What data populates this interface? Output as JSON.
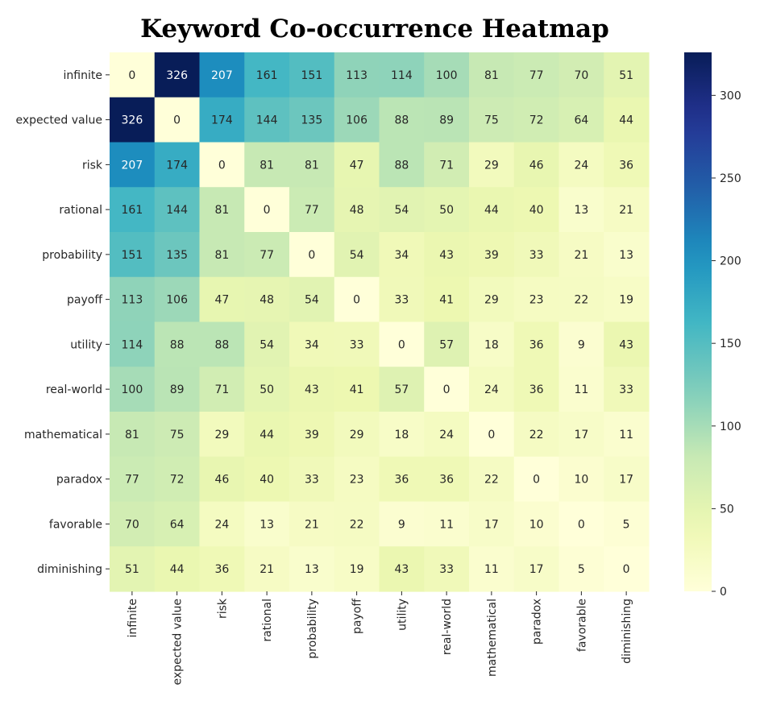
{
  "chart_data": {
    "type": "heatmap",
    "title": "Keyword Co-occurrence Heatmap",
    "xlabel": "",
    "ylabel": "",
    "categories": [
      "infinite",
      "expected value",
      "risk",
      "rational",
      "probability",
      "payoff",
      "utility",
      "real-world",
      "mathematical",
      "paradox",
      "favorable",
      "diminishing"
    ],
    "matrix": [
      [
        0,
        326,
        207,
        161,
        151,
        113,
        114,
        100,
        81,
        77,
        70,
        51
      ],
      [
        326,
        0,
        174,
        144,
        135,
        106,
        88,
        89,
        75,
        72,
        64,
        44
      ],
      [
        207,
        174,
        0,
        81,
        81,
        47,
        88,
        71,
        29,
        46,
        24,
        36
      ],
      [
        161,
        144,
        81,
        0,
        77,
        48,
        54,
        50,
        44,
        40,
        13,
        21
      ],
      [
        151,
        135,
        81,
        77,
        0,
        54,
        34,
        43,
        39,
        33,
        21,
        13
      ],
      [
        113,
        106,
        47,
        48,
        54,
        0,
        33,
        41,
        29,
        23,
        22,
        19
      ],
      [
        114,
        88,
        88,
        54,
        34,
        33,
        0,
        57,
        18,
        36,
        9,
        43
      ],
      [
        100,
        89,
        71,
        50,
        43,
        41,
        57,
        0,
        24,
        36,
        11,
        33
      ],
      [
        81,
        75,
        29,
        44,
        39,
        29,
        18,
        24,
        0,
        22,
        17,
        11
      ],
      [
        77,
        72,
        46,
        40,
        33,
        23,
        36,
        36,
        22,
        0,
        10,
        17
      ],
      [
        70,
        64,
        24,
        13,
        21,
        22,
        9,
        11,
        17,
        10,
        0,
        5
      ],
      [
        51,
        44,
        36,
        21,
        13,
        19,
        43,
        33,
        11,
        17,
        5,
        0
      ]
    ],
    "colormap": "YlGnBu",
    "vmin": 0,
    "vmax": 326,
    "colorbar_ticks": [
      0,
      50,
      100,
      150,
      200,
      250,
      300
    ],
    "annotations": true,
    "grid": false
  }
}
